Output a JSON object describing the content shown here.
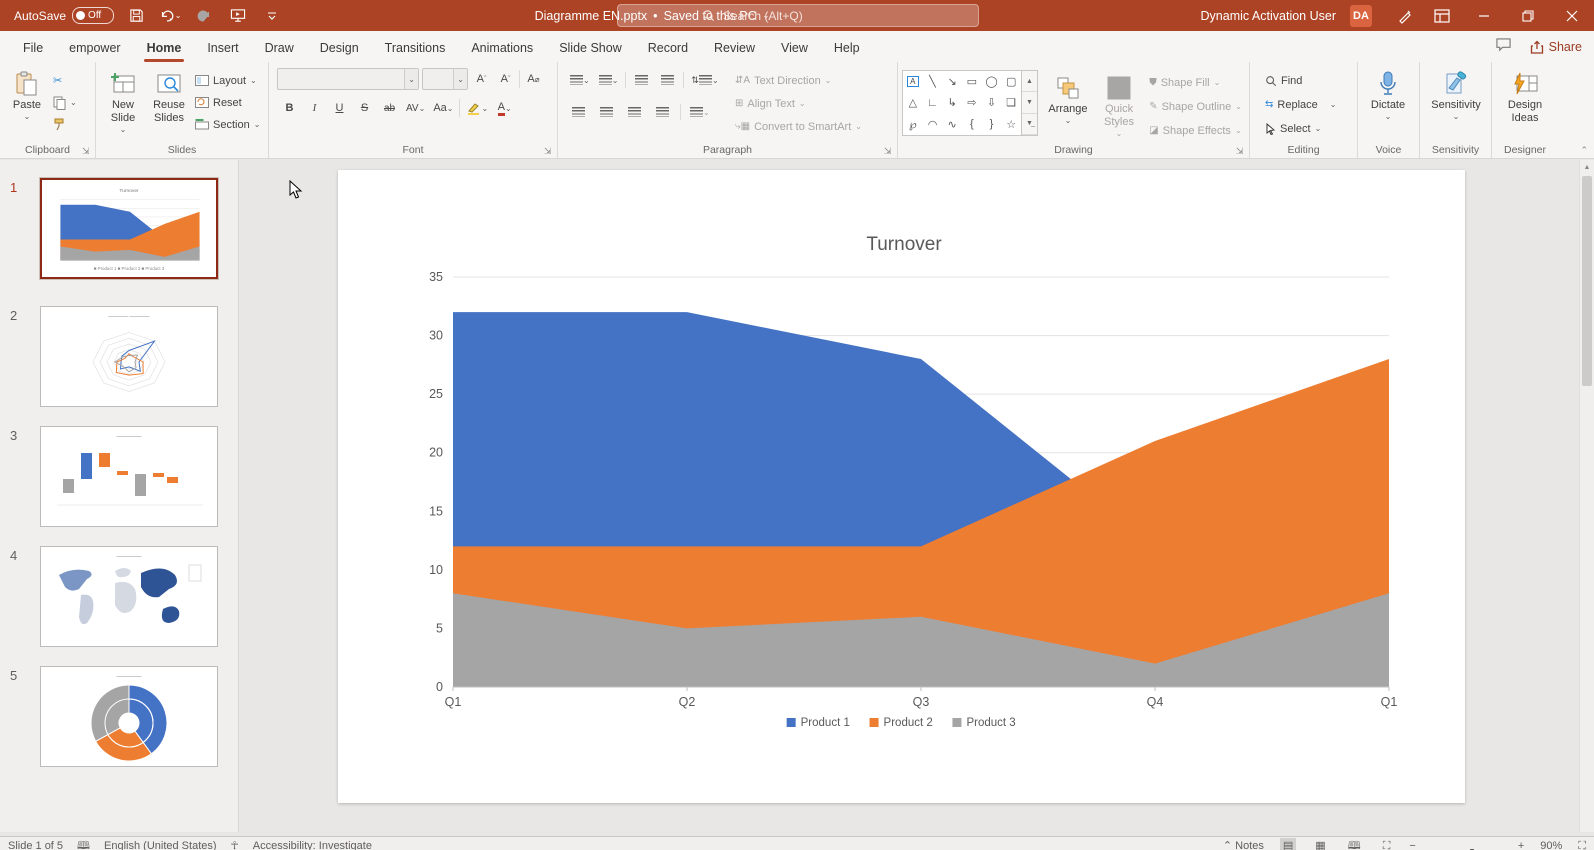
{
  "titlebar": {
    "autosave_label": "AutoSave",
    "autosave_state": "Off",
    "doc_title": "Diagramme EN.pptx",
    "doc_status": "Saved to this PC",
    "search_placeholder": "Search (Alt+Q)",
    "user_name": "Dynamic Activation User",
    "user_initials": "DA"
  },
  "tabs": {
    "items": [
      {
        "label": "File",
        "active": false
      },
      {
        "label": "empower",
        "active": false
      },
      {
        "label": "Home",
        "active": true
      },
      {
        "label": "Insert",
        "active": false
      },
      {
        "label": "Draw",
        "active": false
      },
      {
        "label": "Design",
        "active": false
      },
      {
        "label": "Transitions",
        "active": false
      },
      {
        "label": "Animations",
        "active": false
      },
      {
        "label": "Slide Show",
        "active": false
      },
      {
        "label": "Record",
        "active": false
      },
      {
        "label": "Review",
        "active": false
      },
      {
        "label": "View",
        "active": false
      },
      {
        "label": "Help",
        "active": false
      }
    ],
    "share_label": "Share"
  },
  "ribbon": {
    "clipboard": {
      "label": "Clipboard",
      "paste": "Paste"
    },
    "slides": {
      "label": "Slides",
      "new_slide": "New Slide",
      "reuse_slides": "Reuse Slides",
      "layout": "Layout",
      "reset": "Reset",
      "section": "Section"
    },
    "font": {
      "label": "Font",
      "bold": "B",
      "italic": "I",
      "underline": "U",
      "strike": "S",
      "spacing": "AV",
      "case": "Aa"
    },
    "paragraph": {
      "label": "Paragraph",
      "text_direction": "Text Direction",
      "align_text": "Align Text",
      "smartart": "Convert to SmartArt"
    },
    "drawing": {
      "label": "Drawing",
      "arrange": "Arrange",
      "quick_styles": "Quick Styles",
      "shape_fill": "Shape Fill",
      "shape_outline": "Shape Outline",
      "shape_effects": "Shape Effects"
    },
    "editing": {
      "label": "Editing",
      "find": "Find",
      "replace": "Replace",
      "select": "Select"
    },
    "voice": {
      "label": "Voice",
      "dictate": "Dictate"
    },
    "sensitivity": {
      "label": "Sensitivity",
      "button": "Sensitivity"
    },
    "designer": {
      "label": "Designer",
      "button": "Design Ideas"
    }
  },
  "thumbnails": {
    "items": [
      {
        "number": "1",
        "selected": true,
        "kind": "area-chart"
      },
      {
        "number": "2",
        "selected": false,
        "kind": "radar-chart"
      },
      {
        "number": "3",
        "selected": false,
        "kind": "waterfall-chart"
      },
      {
        "number": "4",
        "selected": false,
        "kind": "world-map"
      },
      {
        "number": "5",
        "selected": false,
        "kind": "sunburst-chart"
      }
    ]
  },
  "chart_data": {
    "type": "area",
    "mode": "overlapping",
    "title": "Turnover",
    "categories": [
      "Q1",
      "Q2",
      "Q3",
      "Q4",
      "Q1"
    ],
    "series": [
      {
        "name": "Product 1",
        "color": "#4472C4",
        "values": [
          32,
          32,
          28,
          12,
          12
        ]
      },
      {
        "name": "Product 2",
        "color": "#ED7D31",
        "values": [
          12,
          12,
          12,
          21,
          28
        ]
      },
      {
        "name": "Product 3",
        "color": "#A5A5A5",
        "values": [
          8,
          5,
          6,
          2,
          8
        ]
      }
    ],
    "ylim": [
      0,
      35
    ],
    "ytick_step": 5,
    "grid": true,
    "legend_position": "bottom",
    "note": "Series drawn overlapping (later series in front); Product 1 values at Q4 and final Q1 are hidden behind Product 2 and estimated."
  },
  "statusbar": {
    "slide_info": "Slide 1 of 5",
    "language": "English (United States)",
    "accessibility": "Accessibility: Investigate",
    "notes_label": "Notes",
    "zoom_level": "90%"
  },
  "colors": {
    "titlebar": "#AC4325",
    "accent": "#B3482B",
    "series1": "#4472C4",
    "series2": "#ED7D31",
    "series3": "#A5A5A5",
    "chart_text": "#595959"
  }
}
